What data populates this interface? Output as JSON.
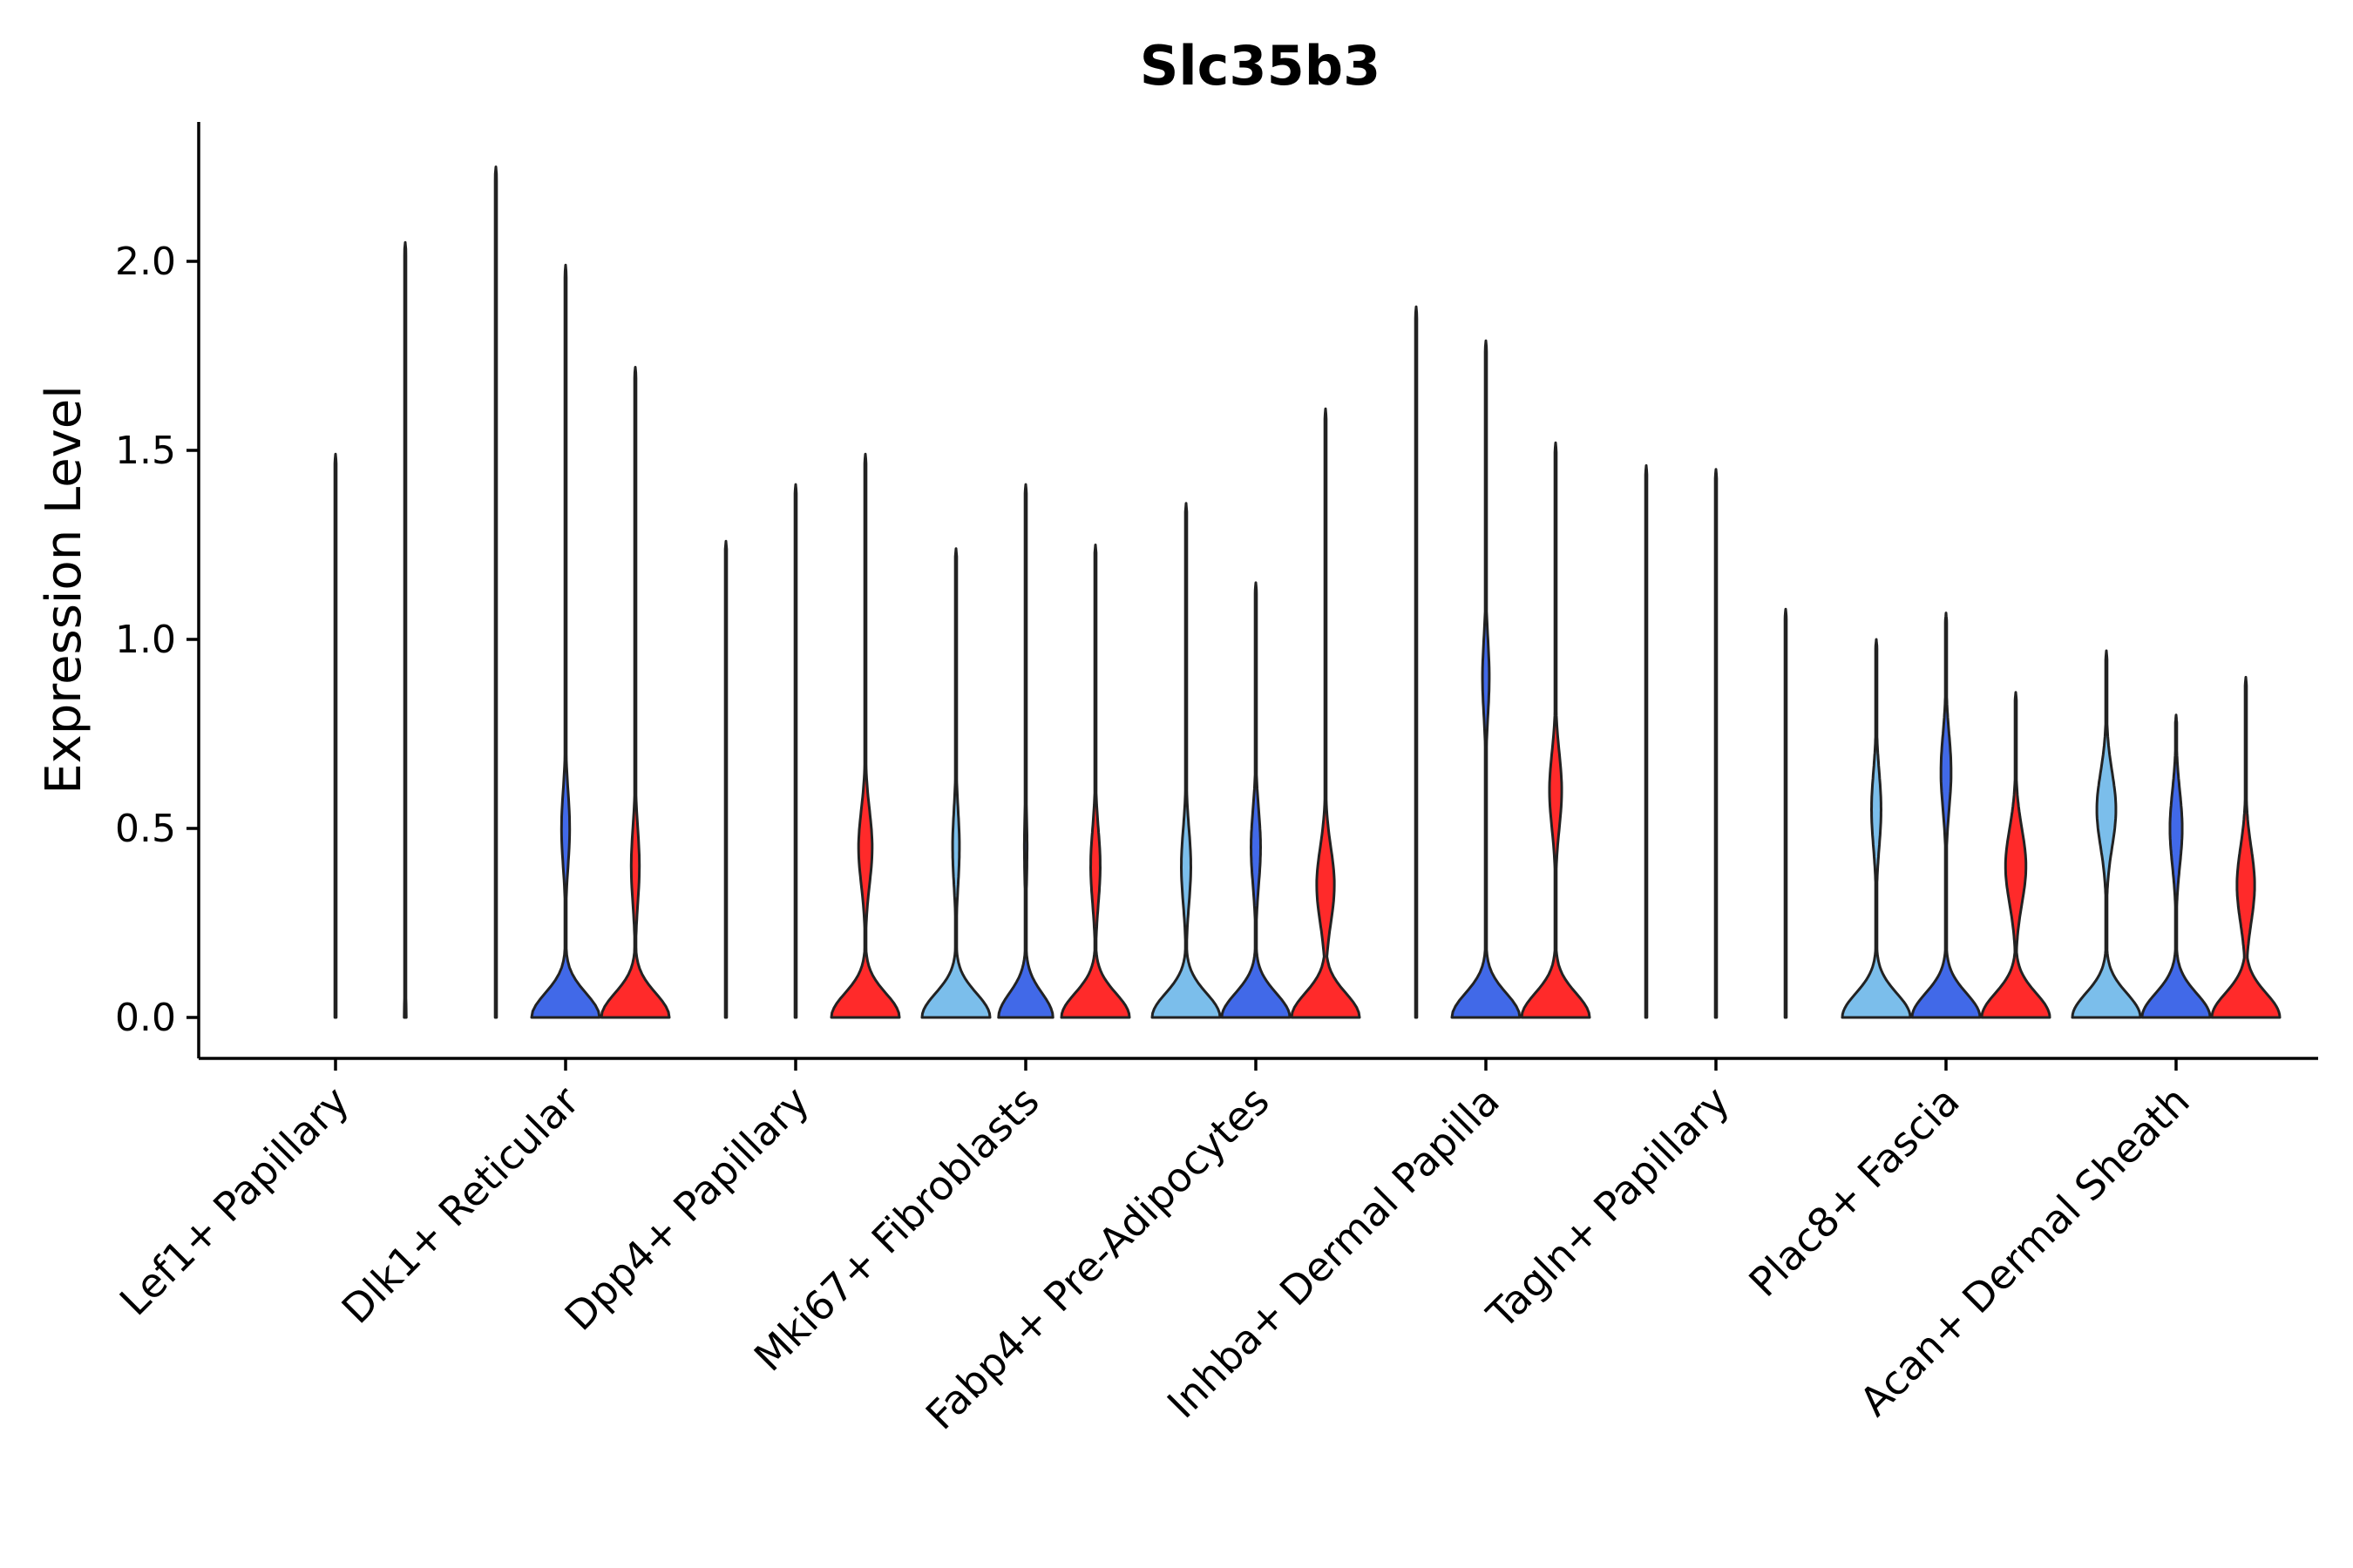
{
  "chart_data": {
    "type": "violin",
    "title": "Slc35b3",
    "xlabel": "",
    "ylabel": "Expression Level",
    "ylim": [
      -0.11,
      2.36
    ],
    "yticks": [
      0.0,
      0.5,
      1.0,
      1.5,
      2.0
    ],
    "ytick_labels": [
      "0.0",
      "0.5",
      "1.0",
      "1.5",
      "2.0"
    ],
    "colors": {
      "group1": "#7BBEEB",
      "group2": "#4169E8",
      "group3": "#FF2A2A",
      "outline": "#222222"
    },
    "categories": [
      "Lef1+ Papillary",
      "Dlk1+ Reticular",
      "Dpp4+ Papillary",
      "Mki67+ Fibroblasts",
      "Fabp4+ Pre-Adipocytes",
      "Inhba+ Dermal Papilla",
      "Tagln+ Papillary",
      "Plac8+ Fascia",
      "Acan+ Dermal Sheath"
    ],
    "violins": [
      [
        {
          "group": 1,
          "max": 0.0,
          "base_width": 0.01,
          "mode": 0.0,
          "mode_width": 0.0
        },
        {
          "group": 2,
          "max": 1.49,
          "base_width": 0.02,
          "mode": 0.0,
          "mode_width": 0.0
        },
        {
          "group": 3,
          "max": 2.05,
          "base_width": 0.03,
          "mode": 0.0,
          "mode_width": 0.0
        }
      ],
      [
        {
          "group": 1,
          "max": 2.25,
          "base_width": 0.02,
          "mode": 0.0,
          "mode_width": 0.0
        },
        {
          "group": 2,
          "max": 1.99,
          "base_width": 1.0,
          "mode": 0.5,
          "mode_width": 0.12
        },
        {
          "group": 3,
          "max": 1.72,
          "base_width": 1.0,
          "mode": 0.4,
          "mode_width": 0.12
        }
      ],
      [
        {
          "group": 1,
          "max": 1.26,
          "base_width": 0.01,
          "mode": 0.0,
          "mode_width": 0.0
        },
        {
          "group": 2,
          "max": 1.41,
          "base_width": 0.01,
          "mode": 0.0,
          "mode_width": 0.0
        },
        {
          "group": 3,
          "max": 1.49,
          "base_width": 1.0,
          "mode": 0.45,
          "mode_width": 0.2
        }
      ],
      [
        {
          "group": 1,
          "max": 1.24,
          "base_width": 1.0,
          "mode": 0.45,
          "mode_width": 0.1
        },
        {
          "group": 2,
          "max": 1.41,
          "base_width": 0.8,
          "mode": 0.45,
          "mode_width": 0.04
        },
        {
          "group": 3,
          "max": 1.25,
          "base_width": 1.0,
          "mode": 0.4,
          "mode_width": 0.14
        }
      ],
      [
        {
          "group": 1,
          "max": 1.36,
          "base_width": 1.0,
          "mode": 0.4,
          "mode_width": 0.14
        },
        {
          "group": 2,
          "max": 1.15,
          "base_width": 1.0,
          "mode": 0.45,
          "mode_width": 0.14
        },
        {
          "group": 3,
          "max": 1.61,
          "base_width": 1.0,
          "mode": 0.35,
          "mode_width": 0.26
        }
      ],
      [
        {
          "group": 1,
          "max": 1.88,
          "base_width": 0.01,
          "mode": 0.0,
          "mode_width": 0.0
        },
        {
          "group": 2,
          "max": 1.79,
          "base_width": 1.0,
          "mode": 0.9,
          "mode_width": 0.1
        },
        {
          "group": 3,
          "max": 1.52,
          "base_width": 1.0,
          "mode": 0.6,
          "mode_width": 0.18
        }
      ],
      [
        {
          "group": 1,
          "max": 1.46,
          "base_width": 0.01,
          "mode": 0.0,
          "mode_width": 0.0
        },
        {
          "group": 2,
          "max": 1.45,
          "base_width": 0.01,
          "mode": 0.0,
          "mode_width": 0.0
        },
        {
          "group": 3,
          "max": 1.08,
          "base_width": 0.01,
          "mode": 0.0,
          "mode_width": 0.0
        }
      ],
      [
        {
          "group": 1,
          "max": 1.0,
          "base_width": 1.0,
          "mode": 0.55,
          "mode_width": 0.14
        },
        {
          "group": 2,
          "max": 1.07,
          "base_width": 1.0,
          "mode": 0.65,
          "mode_width": 0.15
        },
        {
          "group": 3,
          "max": 0.86,
          "base_width": 1.0,
          "mode": 0.4,
          "mode_width": 0.3
        }
      ],
      [
        {
          "group": 1,
          "max": 0.97,
          "base_width": 1.0,
          "mode": 0.55,
          "mode_width": 0.28
        },
        {
          "group": 2,
          "max": 0.8,
          "base_width": 1.0,
          "mode": 0.5,
          "mode_width": 0.18
        },
        {
          "group": 3,
          "max": 0.9,
          "base_width": 1.0,
          "mode": 0.35,
          "mode_width": 0.26
        }
      ]
    ]
  }
}
